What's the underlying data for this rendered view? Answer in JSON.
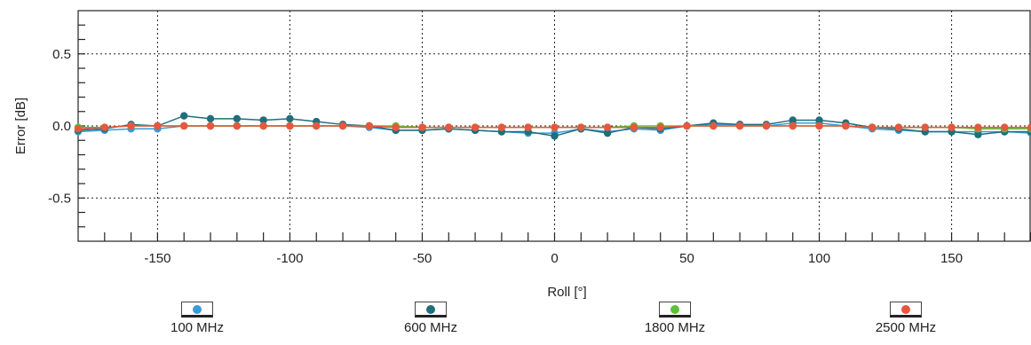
{
  "chart_data": {
    "type": "line",
    "xlabel": "Roll [°]",
    "ylabel": "Error [dB]",
    "xlim": [
      -180,
      180
    ],
    "ylim": [
      -0.8,
      0.8
    ],
    "xticks": [
      -150,
      -100,
      -50,
      0,
      50,
      100,
      150
    ],
    "xtick_labels": [
      "-150",
      "-100",
      "-50",
      "0",
      "50",
      "100",
      "150"
    ],
    "yticks": [
      0.5,
      0.0,
      -0.5
    ],
    "ytick_labels": [
      "0.5",
      "0.0",
      "-0.5"
    ],
    "grid": true,
    "legend_position": "bottom",
    "x": [
      -180,
      -170,
      -160,
      -150,
      -140,
      -130,
      -120,
      -110,
      -100,
      -90,
      -80,
      -70,
      -60,
      -50,
      -40,
      -30,
      -20,
      -10,
      0,
      10,
      20,
      30,
      40,
      50,
      60,
      70,
      80,
      90,
      100,
      110,
      120,
      130,
      140,
      150,
      160,
      170,
      180
    ],
    "series": [
      {
        "name": "100 MHz",
        "color": "#3a9ad9",
        "values": [
          -0.04,
          -0.03,
          -0.02,
          -0.02,
          0.0,
          0.0,
          0.0,
          0.0,
          0.0,
          0.0,
          0.0,
          -0.01,
          -0.03,
          -0.03,
          -0.02,
          -0.03,
          -0.04,
          -0.05,
          -0.05,
          -0.02,
          -0.04,
          -0.02,
          -0.03,
          0.0,
          0.01,
          0.01,
          0.0,
          0.02,
          0.02,
          0.0,
          -0.02,
          -0.03,
          -0.04,
          -0.04,
          -0.04,
          -0.04,
          -0.05
        ]
      },
      {
        "name": "600 MHz",
        "color": "#1f6f7a",
        "values": [
          -0.03,
          -0.02,
          0.01,
          0.0,
          0.07,
          0.05,
          0.05,
          0.04,
          0.05,
          0.03,
          0.01,
          0.0,
          -0.03,
          -0.03,
          -0.02,
          -0.03,
          -0.04,
          -0.04,
          -0.07,
          -0.02,
          -0.05,
          -0.01,
          -0.02,
          0.0,
          0.02,
          0.01,
          0.01,
          0.04,
          0.04,
          0.02,
          -0.01,
          -0.02,
          -0.04,
          -0.04,
          -0.06,
          -0.04,
          -0.04
        ]
      },
      {
        "name": "1800 MHz",
        "color": "#5bc236",
        "values": [
          -0.01,
          -0.01,
          0.0,
          0.0,
          0.0,
          0.0,
          0.0,
          0.0,
          0.0,
          0.0,
          0.0,
          0.0,
          0.0,
          -0.01,
          -0.01,
          -0.01,
          -0.01,
          -0.01,
          -0.01,
          -0.01,
          -0.01,
          0.0,
          0.0,
          0.0,
          0.0,
          0.0,
          0.0,
          0.0,
          0.0,
          0.0,
          -0.01,
          -0.01,
          -0.01,
          -0.01,
          -0.02,
          -0.02,
          -0.02
        ]
      },
      {
        "name": "2500 MHz",
        "color": "#e8563f",
        "values": [
          -0.02,
          -0.01,
          0.0,
          0.0,
          0.0,
          0.0,
          0.0,
          0.0,
          0.0,
          0.0,
          0.0,
          0.0,
          -0.01,
          -0.01,
          -0.01,
          -0.01,
          -0.01,
          -0.01,
          -0.01,
          -0.01,
          -0.01,
          -0.01,
          -0.01,
          0.0,
          0.0,
          0.0,
          0.0,
          0.0,
          0.0,
          0.0,
          -0.01,
          -0.01,
          -0.01,
          -0.01,
          -0.01,
          -0.01,
          -0.01
        ]
      }
    ]
  }
}
